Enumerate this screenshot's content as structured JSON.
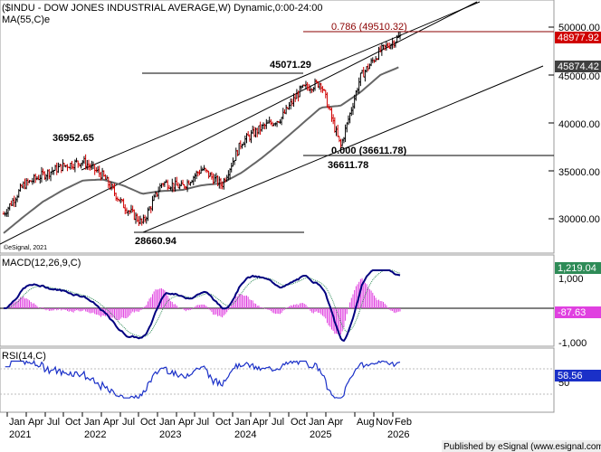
{
  "header": {
    "title": "($INDU - DOW JONES INDUSTRIAL AVERAGE,W) Dynamic,0:00-24:00",
    "ma_label": "MA(55,C)e",
    "watermark": "©eSignal, 2021",
    "footer": "Published by eSignal (www.esignal.com)"
  },
  "price_panel": {
    "axis_ticks": [
      "50000.00",
      "45000.00",
      "40000.00",
      "35000.00",
      "30000.00"
    ],
    "last_price_tag": "48977.92",
    "ma_tag": "45874.42",
    "fib_top_label": "0.786 (49510.32)",
    "fib_bottom_label": "0.000 (36611.78)",
    "annotations": [
      "36952.65",
      "45071.29",
      "28660.94",
      "36611.78"
    ]
  },
  "macd_panel": {
    "label": "MACD(12,26,9,C)",
    "axis_ticks": [
      "1,000",
      "-1,000"
    ],
    "macd_tag": "1,219.04",
    "hist_tag": "-87.63"
  },
  "rsi_panel": {
    "label": "RSI(14,C)",
    "axis_ticks": [
      "50"
    ],
    "rsi_tag": "58.56"
  },
  "time_axis": {
    "months": [
      "Jan",
      "Apr",
      "Jul",
      "Oct",
      "Jan",
      "Apr",
      "Jul",
      "Oct",
      "Jan",
      "Apr",
      "Jul",
      "Oct",
      "Jan",
      "Apr",
      "Jul",
      "Oct",
      "Jan",
      "Apr",
      "Aug",
      "Nov",
      "Feb"
    ],
    "years": [
      "2021",
      "2022",
      "2023",
      "2024",
      "2025",
      "2026"
    ]
  },
  "colors": {
    "up_bar": "#000000",
    "down_bar": "#d00000",
    "ma": "#666666",
    "channel": "#000000",
    "fib_line": "#8b0000",
    "macd": "#00007f",
    "signal": "#2e8b57",
    "hist": "#e040e0",
    "rsi": "#1a30c8",
    "last_price_bg": "#d00000",
    "macd_tag_bg": "#2e8b57",
    "hist_tag_bg": "#e040e0",
    "rsi_tag_bg": "#1a30c8",
    "ma_tag_bg": "#404040"
  },
  "chart_data": {
    "type": "line",
    "title": "($INDU - DOW JONES INDUSTRIAL AVERAGE,W) Dynamic,0:00-24:00",
    "x": [
      "Jan 2021",
      "Apr 2021",
      "Jul 2021",
      "Oct 2021",
      "Jan 2022",
      "Apr 2022",
      "Jul 2022",
      "Oct 2022",
      "Jan 2023",
      "Apr 2023",
      "Jul 2023",
      "Oct 2023",
      "Jan 2024",
      "Apr 2024",
      "Jul 2024",
      "Oct 2024",
      "Jan 2025",
      "Apr 2025",
      "Aug 2025",
      "Nov 2025",
      "Feb 2026"
    ],
    "series": [
      {
        "name": "$INDU",
        "values": [
          30500,
          33500,
          34600,
          35500,
          36000,
          34500,
          31500,
          29500,
          33800,
          33300,
          35200,
          33500,
          38000,
          39500,
          40500,
          43500,
          44200,
          37500,
          44800,
          47500,
          49000
        ]
      },
      {
        "name": "MA(55,C)e",
        "values": [
          28500,
          30200,
          31800,
          33000,
          34000,
          34100,
          33500,
          32600,
          32900,
          33000,
          33500,
          33700,
          34800,
          36300,
          38000,
          39800,
          41600,
          41800,
          43200,
          45000,
          45874
        ]
      }
    ],
    "ylim": [
      27000,
      51000
    ],
    "annotations": [
      {
        "x": "Nov 2021",
        "y": 36952.65
      },
      {
        "x": "Sep 2022",
        "y": 28660.94
      },
      {
        "x": "Nov 2024",
        "y": 45071.29
      },
      {
        "x": "Apr 2025",
        "y": 36611.78
      }
    ],
    "fib_levels": [
      {
        "label": "0.786",
        "y": 49510.32
      },
      {
        "label": "0.000",
        "y": 36611.78
      }
    ],
    "macd": {
      "name": "MACD(12,26,9,C)",
      "last": 1219.04,
      "hist_last": -87.63,
      "ylim": [
        -1300,
        1500
      ]
    },
    "rsi": {
      "name": "RSI(14,C)",
      "last": 58.56,
      "ylim": [
        20,
        80
      ]
    }
  }
}
